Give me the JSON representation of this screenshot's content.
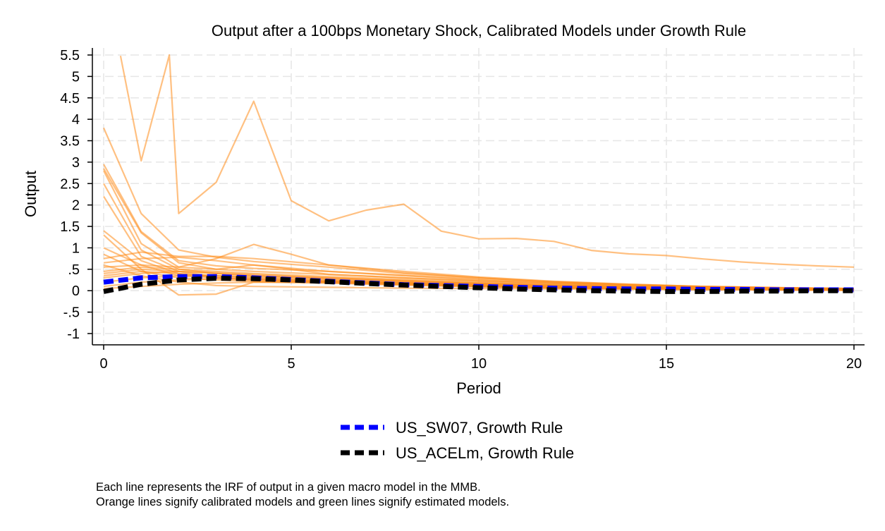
{
  "chart_data": {
    "type": "line",
    "title": "Output after a 100bps Monetary Shock, Calibrated Models under Growth Rule",
    "xlabel": "Period",
    "ylabel": "Output",
    "xlim": [
      0,
      20
    ],
    "ylim": [
      -1,
      5.5
    ],
    "x_ticks": [
      0,
      5,
      10,
      15,
      20
    ],
    "x_tick_labels": [
      "0",
      "5",
      "10",
      "15",
      "20"
    ],
    "y_ticks": [
      -1,
      -0.5,
      0,
      0.5,
      1,
      1.5,
      2,
      2.5,
      3,
      3.5,
      4,
      4.5,
      5,
      5.5
    ],
    "y_tick_labels": [
      "-1",
      "-.5",
      "0",
      ".5",
      "1",
      "1.5",
      "2",
      "2.5",
      "3",
      "3.5",
      "4",
      "4.5",
      "5",
      "5.5"
    ],
    "grid": true,
    "colors": {
      "calibrated": "#ff8c1a",
      "sw07": "#0000ff",
      "acel": "#000000",
      "grid": "#e6e6e6"
    },
    "calibrated_series": [
      {
        "x": [
          0.45,
          1,
          1.75,
          2,
          3,
          4,
          5,
          6,
          7,
          8,
          9,
          10,
          11,
          12,
          13,
          14,
          15,
          16,
          17,
          18,
          19,
          20
        ],
        "values": [
          5.48,
          3.03,
          5.5,
          1.8,
          2.53,
          4.42,
          2.1,
          1.63,
          1.88,
          2.02,
          1.39,
          1.21,
          1.22,
          1.15,
          0.94,
          0.86,
          0.82,
          0.74,
          0.67,
          0.62,
          0.58,
          0.55
        ]
      },
      {
        "x": [
          0,
          1,
          2,
          3,
          4,
          6,
          8,
          10,
          12,
          14,
          16,
          18,
          20
        ],
        "values": [
          3.8,
          1.8,
          0.95,
          0.78,
          0.68,
          0.55,
          0.4,
          0.3,
          0.2,
          0.14,
          0.1,
          0.07,
          0.05
        ]
      },
      {
        "x": [
          0,
          1,
          2,
          3,
          4,
          6,
          8,
          10,
          12,
          14,
          16,
          18,
          20
        ],
        "values": [
          2.95,
          1.38,
          0.7,
          0.58,
          0.52,
          0.45,
          0.36,
          0.27,
          0.19,
          0.13,
          0.09,
          0.06,
          0.04
        ]
      },
      {
        "x": [
          0,
          1,
          2,
          3,
          4,
          5,
          6,
          8,
          10,
          12,
          14,
          16,
          18,
          20
        ],
        "values": [
          2.85,
          1.35,
          0.65,
          0.5,
          0.6,
          0.5,
          0.38,
          0.3,
          0.23,
          0.17,
          0.12,
          0.09,
          0.07,
          0.05
        ]
      },
      {
        "x": [
          0,
          1,
          2,
          3,
          4,
          5,
          6,
          8,
          10,
          12,
          14,
          16,
          18,
          20
        ],
        "values": [
          2.8,
          1.1,
          0.55,
          0.75,
          1.08,
          0.85,
          0.6,
          0.42,
          0.3,
          0.21,
          0.15,
          0.1,
          0.07,
          0.05
        ]
      },
      {
        "x": [
          0,
          1,
          2,
          3,
          4,
          6,
          8,
          10,
          12,
          14,
          16,
          18,
          20
        ],
        "values": [
          2.5,
          0.95,
          0.5,
          0.4,
          0.35,
          0.3,
          0.24,
          0.18,
          0.13,
          0.09,
          0.06,
          0.04,
          0.03
        ]
      },
      {
        "x": [
          0,
          1,
          2,
          3,
          4,
          6,
          8,
          10,
          12,
          14,
          16,
          18,
          20
        ],
        "values": [
          2.2,
          0.8,
          0.45,
          0.32,
          0.28,
          0.22,
          0.18,
          0.13,
          0.09,
          0.06,
          0.04,
          0.03,
          0.02
        ]
      },
      {
        "x": [
          0,
          1,
          2,
          3,
          4,
          6,
          8,
          10,
          12,
          14,
          16,
          18,
          20
        ],
        "values": [
          1.4,
          0.7,
          0.4,
          0.3,
          0.25,
          0.2,
          0.15,
          0.1,
          0.07,
          0.05,
          0.04,
          0.03,
          0.02
        ]
      },
      {
        "x": [
          0,
          1,
          2,
          3,
          4,
          6,
          8,
          10,
          12,
          14,
          16,
          18,
          20
        ],
        "values": [
          1.3,
          0.5,
          -0.1,
          -0.08,
          0.2,
          0.22,
          0.18,
          0.12,
          0.08,
          0.05,
          0.04,
          0.03,
          0.02
        ]
      },
      {
        "x": [
          0,
          1,
          2,
          3,
          4,
          6,
          8,
          10,
          12,
          14,
          16,
          18,
          20
        ],
        "values": [
          1.0,
          0.6,
          0.35,
          0.3,
          0.25,
          0.2,
          0.15,
          0.1,
          0.07,
          0.05,
          0.03,
          0.02,
          0.01
        ]
      },
      {
        "x": [
          0,
          1,
          2,
          3,
          4,
          6,
          8,
          10,
          12,
          14,
          16,
          18,
          20
        ],
        "values": [
          0.85,
          0.45,
          0.3,
          0.25,
          0.22,
          0.18,
          0.13,
          0.09,
          0.06,
          0.04,
          0.03,
          0.02,
          0.01
        ]
      },
      {
        "x": [
          0,
          1,
          2,
          3,
          4,
          6,
          8,
          10,
          12,
          14,
          16,
          18,
          20
        ],
        "values": [
          0.75,
          0.9,
          0.8,
          0.8,
          0.75,
          0.6,
          0.45,
          0.32,
          0.22,
          0.15,
          0.1,
          0.07,
          0.05
        ]
      },
      {
        "x": [
          0,
          1,
          2,
          3,
          4,
          6,
          8,
          10,
          12,
          14,
          16,
          18,
          20
        ],
        "values": [
          0.65,
          0.75,
          0.78,
          0.7,
          0.6,
          0.45,
          0.35,
          0.25,
          0.17,
          0.12,
          0.08,
          0.05,
          0.04
        ]
      },
      {
        "x": [
          0,
          1,
          2,
          3,
          4,
          6,
          8,
          10,
          12,
          14,
          16,
          18,
          20
        ],
        "values": [
          0.55,
          0.6,
          0.55,
          0.5,
          0.45,
          0.38,
          0.3,
          0.22,
          0.15,
          0.1,
          0.07,
          0.05,
          0.04
        ]
      },
      {
        "x": [
          0,
          1,
          2,
          3,
          4,
          6,
          8,
          10,
          12,
          14,
          16,
          18,
          20
        ],
        "values": [
          0.45,
          0.55,
          0.5,
          0.45,
          0.4,
          0.33,
          0.26,
          0.19,
          0.13,
          0.09,
          0.06,
          0.04,
          0.03
        ]
      },
      {
        "x": [
          0,
          1,
          2,
          3,
          4,
          6,
          8,
          10,
          12,
          14,
          16,
          18,
          20
        ],
        "values": [
          0.4,
          0.5,
          0.45,
          0.4,
          0.35,
          0.28,
          0.22,
          0.16,
          0.11,
          0.08,
          0.05,
          0.04,
          0.03
        ]
      },
      {
        "x": [
          0,
          1,
          2,
          3,
          4,
          6,
          8,
          10,
          12,
          14,
          16,
          18,
          20
        ],
        "values": [
          0.35,
          0.45,
          0.4,
          0.35,
          0.3,
          0.24,
          0.19,
          0.14,
          0.1,
          0.07,
          0.05,
          0.03,
          0.02
        ]
      },
      {
        "x": [
          0,
          1,
          2,
          3,
          4,
          6,
          8,
          10,
          12,
          14,
          16,
          18,
          20
        ],
        "values": [
          0.3,
          0.4,
          0.45,
          0.42,
          0.38,
          0.3,
          0.23,
          0.17,
          0.12,
          0.08,
          0.06,
          0.04,
          0.03
        ]
      },
      {
        "x": [
          0,
          1,
          2,
          3,
          4,
          6,
          8,
          10,
          12,
          14,
          16,
          18,
          20
        ],
        "values": [
          0.2,
          0.3,
          0.35,
          0.35,
          0.32,
          0.26,
          0.2,
          0.15,
          0.1,
          0.07,
          0.05,
          0.03,
          0.02
        ]
      },
      {
        "x": [
          0,
          1,
          2,
          3,
          4,
          6,
          8,
          10,
          12,
          14,
          16,
          18,
          20
        ],
        "values": [
          0.1,
          0.2,
          0.25,
          0.28,
          0.27,
          0.22,
          0.17,
          0.12,
          0.08,
          0.06,
          0.04,
          0.03,
          0.02
        ]
      },
      {
        "x": [
          0,
          1,
          2,
          3,
          4,
          6,
          8,
          10,
          12,
          14,
          16,
          18,
          20
        ],
        "values": [
          0.05,
          0.1,
          0.15,
          0.18,
          0.2,
          0.18,
          0.14,
          0.1,
          0.07,
          0.05,
          0.04,
          0.03,
          0.02
        ]
      },
      {
        "x": [
          0,
          1,
          2,
          3,
          4,
          6,
          8,
          10,
          12,
          14,
          16,
          18,
          20
        ],
        "values": [
          0.6,
          0.35,
          0.2,
          0.12,
          0.1,
          0.08,
          0.06,
          0.05,
          0.04,
          0.03,
          0.02,
          0.02,
          0.01
        ]
      }
    ],
    "series": [
      {
        "name": "US_SW07, Growth Rule",
        "x": [
          0,
          1,
          2,
          3,
          4,
          5,
          6,
          7,
          8,
          9,
          10,
          11,
          12,
          13,
          14,
          15,
          16,
          17,
          18,
          19,
          20
        ],
        "values": [
          0.2,
          0.3,
          0.33,
          0.33,
          0.3,
          0.26,
          0.22,
          0.18,
          0.14,
          0.12,
          0.1,
          0.08,
          0.06,
          0.05,
          0.04,
          0.04,
          0.03,
          0.03,
          0.02,
          0.02,
          0.02
        ]
      },
      {
        "name": "US_ACELm, Growth Rule",
        "x": [
          0,
          1,
          2,
          3,
          4,
          5,
          6,
          7,
          8,
          9,
          10,
          11,
          12,
          13,
          14,
          15,
          16,
          17,
          18,
          19,
          20
        ],
        "values": [
          -0.02,
          0.15,
          0.25,
          0.29,
          0.28,
          0.25,
          0.21,
          0.17,
          0.13,
          0.1,
          0.07,
          0.04,
          0.02,
          0.0,
          -0.01,
          -0.02,
          -0.02,
          -0.01,
          -0.01,
          0.0,
          0.0
        ]
      }
    ],
    "legend": [
      {
        "label": "US_SW07, Growth Rule",
        "color": "#0000ff"
      },
      {
        "label": "US_ACELm, Growth Rule",
        "color": "#000000"
      }
    ],
    "legend_position": "bottom"
  },
  "notes": [
    "Each line represents the IRF of output in a given macro model in the MMB.",
    "Orange lines signify calibrated models and green lines signify estimated models."
  ]
}
